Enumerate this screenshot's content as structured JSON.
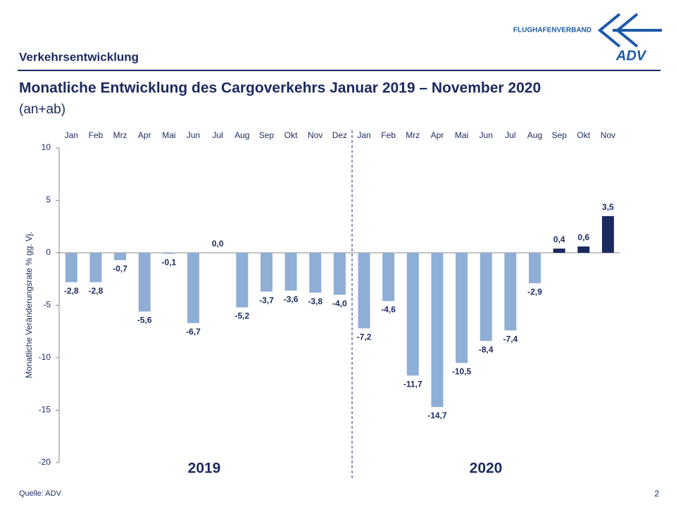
{
  "header": {
    "section": "Verkehrsentwicklung",
    "logo_text": "FLUGHAFENVERBAND",
    "logo_brand": "ADV"
  },
  "footer": {
    "source": "Quelle: ADV",
    "page": "2"
  },
  "chart_data": {
    "type": "bar",
    "title": "Monatliche Entwicklung des Cargoverkehrs Januar 2019 – November 2020",
    "subtitle": "(an+ab)",
    "y_label": "Monatliche Veränderungsrate % gg. Vj.",
    "groups": [
      "2019",
      "2020"
    ],
    "categories": [
      "Jan",
      "Feb",
      "Mrz",
      "Apr",
      "Mai",
      "Jun",
      "Jul",
      "Aug",
      "Sep",
      "Okt",
      "Nov",
      "Dez",
      "Jan",
      "Feb",
      "Mrz",
      "Apr",
      "Mai",
      "Jun",
      "Jul",
      "Aug",
      "Sep",
      "Okt",
      "Nov"
    ],
    "values": [
      -2.8,
      -2.8,
      -0.7,
      -5.6,
      -0.1,
      -6.7,
      0.0,
      -5.2,
      -3.7,
      -3.6,
      -3.8,
      -4.0,
      -7.2,
      -4.6,
      -11.7,
      -14.7,
      -10.5,
      -8.4,
      -7.4,
      -2.9,
      0.4,
      0.6,
      3.5
    ],
    "value_labels": [
      "-2,8",
      "-2,8",
      "-0,7",
      "-5,6",
      "-0,1",
      "-6,7",
      "0,0",
      "-5,2",
      "-3,7",
      "-3,6",
      "-3,8",
      "-4,0",
      "-7,2",
      "-4,6",
      "-11,7",
      "-14,7",
      "-10,5",
      "-8,4",
      "-7,4",
      "-2,9",
      "0,4",
      "0,6",
      "3,5"
    ],
    "colors": [
      "#8faed6",
      "#8faed6",
      "#8faed6",
      "#8faed6",
      "#8faed6",
      "#8faed6",
      "#8faed6",
      "#8faed6",
      "#8faed6",
      "#8faed6",
      "#8faed6",
      "#8faed6",
      "#8faed6",
      "#8faed6",
      "#8faed6",
      "#8faed6",
      "#8faed6",
      "#8faed6",
      "#8faed6",
      "#8faed6",
      "#1b2a5e",
      "#1b2a5e",
      "#1b2a5e"
    ],
    "ylim": [
      -20,
      10
    ],
    "yticks": [
      -20,
      -15,
      -10,
      -5,
      0,
      5,
      10
    ]
  }
}
